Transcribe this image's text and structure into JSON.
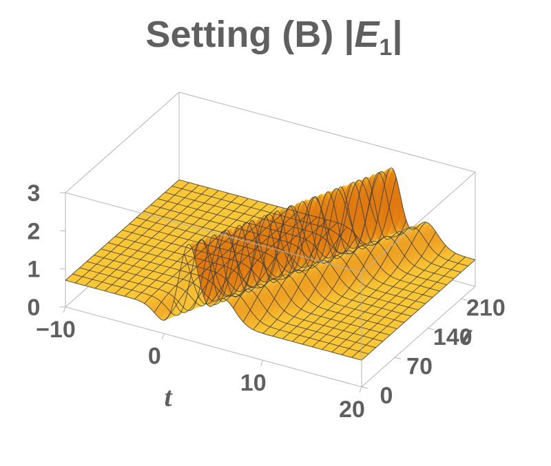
{
  "chart_data": {
    "type": "surface3d",
    "title": {
      "prefix": "Setting (B) |",
      "symbol": "E",
      "subscript": "1",
      "suffix": "|"
    },
    "xlabel": "t",
    "ylabel": "z",
    "zlabel": "",
    "xlim": [
      -10,
      20
    ],
    "ylim": [
      0,
      240
    ],
    "zlim": [
      0,
      3
    ],
    "x_ticks": [
      "−10",
      "0",
      "10",
      "20"
    ],
    "x_tick_values": [
      -10,
      0,
      10,
      20
    ],
    "y_ticks": [
      "0",
      "70",
      "140",
      "210"
    ],
    "y_tick_values": [
      0,
      70,
      140,
      210
    ],
    "z_ticks": [
      "0",
      "1",
      "2",
      "3"
    ],
    "z_tick_values": [
      0,
      1,
      2,
      3
    ],
    "surface": {
      "background_level": 0.7,
      "peaks": [
        {
          "t_at_z0": 2.5,
          "slope": 0.0375,
          "amplitude": 1.9,
          "width": 1.0
        },
        {
          "t_at_z0": 5.8,
          "slope": 0.0375,
          "amplitude": 0.7,
          "width": 1.3
        }
      ],
      "dips": [
        {
          "t_at_z0": 0.3,
          "slope": 0.0375,
          "depth": 0.45,
          "width": 1.1
        },
        {
          "t_at_z0": 4.3,
          "slope": 0.0375,
          "depth": 0.35,
          "width": 0.9
        }
      ]
    },
    "colors": {
      "surface_light": "#ffd23c",
      "surface_dark": "#e07a10",
      "mesh": "#3d3d3d",
      "box": "#b4b4b4",
      "text": "#5f5f5f"
    },
    "mesh": true,
    "box": true
  }
}
